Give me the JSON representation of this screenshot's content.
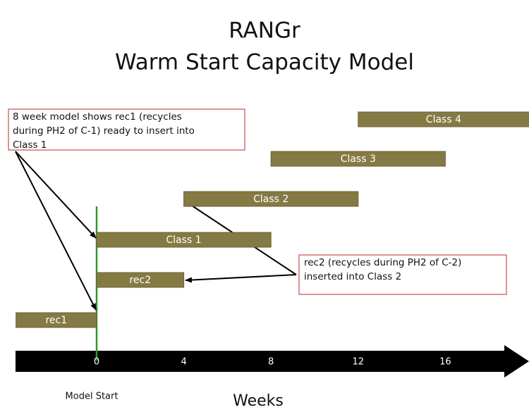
{
  "title": "RANGr",
  "subtitle": "Warm Start Capacity Model",
  "axis": {
    "ticks": [
      0,
      4,
      8,
      12,
      16
    ],
    "label": "Weeks",
    "origin_label": "Model Start"
  },
  "bars": [
    {
      "label": "Class 4",
      "start": 12,
      "end": 20
    },
    {
      "label": "Class 3",
      "start": 8,
      "end": 16
    },
    {
      "label": "Class 2",
      "start": 4,
      "end": 12
    },
    {
      "label": "Class 1",
      "start": 0,
      "end": 8
    },
    {
      "label": "rec2",
      "start": 0,
      "end": 4
    },
    {
      "label": "rec1",
      "start": -3.7,
      "end": 0
    }
  ],
  "callouts": [
    {
      "lines": [
        "8 week model shows rec1 (recycles",
        "during PH2 of C-1) ready to insert into",
        "Class 1"
      ]
    },
    {
      "lines": [
        "rec2 (recycles during PH2 of C-2)",
        "inserted into Class 2"
      ]
    }
  ]
}
